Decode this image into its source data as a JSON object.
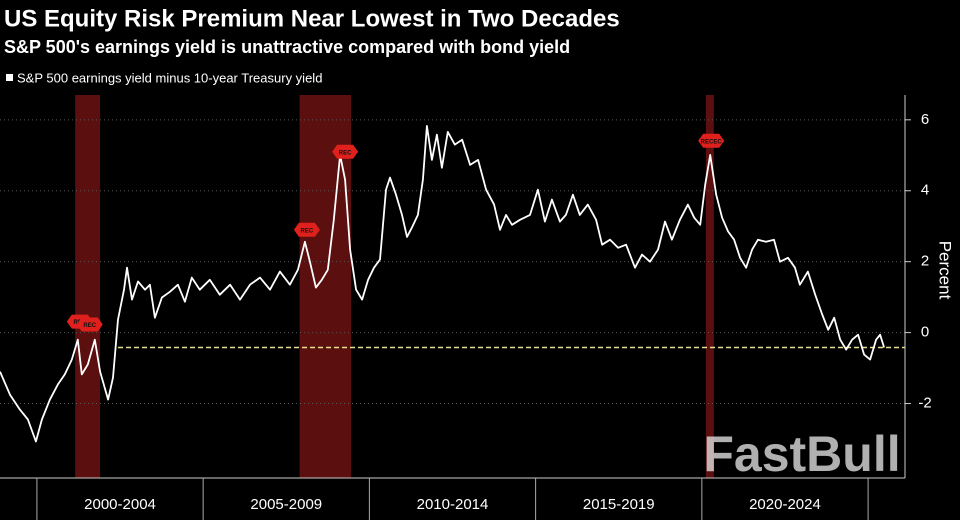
{
  "chart_data": {
    "type": "line",
    "title": "US Equity Risk Premium Near Lowest in Two Decades",
    "subtitle": "S&P 500's earnings yield is unattractive compared with bond yield",
    "y_label": "Percent",
    "watermark": "FastBull",
    "x": [
      1998.89,
      1999.19,
      1999.49,
      1999.73,
      1999.97,
      2000.15,
      2000.39,
      2000.63,
      2000.84,
      2001.05,
      2001.23,
      2001.35,
      2001.53,
      2001.74,
      2001.9,
      2002.14,
      2002.29,
      2002.44,
      2002.62,
      2002.71,
      2002.86,
      2003.04,
      2003.25,
      2003.4,
      2003.55,
      2003.76,
      2004.0,
      2004.24,
      2004.45,
      2004.66,
      2004.9,
      2005.2,
      2005.5,
      2005.81,
      2006.11,
      2006.41,
      2006.71,
      2007.01,
      2007.31,
      2007.61,
      2007.85,
      2008.06,
      2008.21,
      2008.39,
      2008.57,
      2008.75,
      2008.93,
      2009.12,
      2009.27,
      2009.42,
      2009.6,
      2009.78,
      2009.96,
      2010.14,
      2010.32,
      2010.5,
      2010.62,
      2010.8,
      2010.98,
      2011.13,
      2011.28,
      2011.46,
      2011.61,
      2011.73,
      2011.88,
      2012.03,
      2012.18,
      2012.36,
      2012.57,
      2012.79,
      2013.03,
      2013.27,
      2013.51,
      2013.75,
      2013.93,
      2014.11,
      2014.29,
      2014.53,
      2014.83,
      2015.07,
      2015.28,
      2015.49,
      2015.73,
      2015.91,
      2016.12,
      2016.33,
      2016.57,
      2016.82,
      2017.0,
      2017.24,
      2017.48,
      2017.72,
      2017.99,
      2018.2,
      2018.44,
      2018.68,
      2018.89,
      2019.1,
      2019.34,
      2019.58,
      2019.77,
      2019.95,
      2020.1,
      2020.25,
      2020.43,
      2020.61,
      2020.79,
      2020.97,
      2021.15,
      2021.33,
      2021.51,
      2021.69,
      2021.93,
      2022.17,
      2022.35,
      2022.59,
      2022.8,
      2022.95,
      2023.19,
      2023.41,
      2023.62,
      2023.8,
      2023.98,
      2024.16,
      2024.34,
      2024.52,
      2024.7,
      2024.88,
      2025.06,
      2025.24,
      2025.36,
      2025.48
    ],
    "series": [
      {
        "name": "S&P 500 earnings yield minus 10-year Treasury yield",
        "color": "#ffffff",
        "values": [
          -1.1,
          -1.75,
          -2.17,
          -2.45,
          -3.07,
          -2.45,
          -1.89,
          -1.46,
          -1.18,
          -0.76,
          -0.2,
          -1.18,
          -0.9,
          -0.2,
          -1.1,
          -1.89,
          -1.27,
          0.37,
          1.21,
          1.83,
          0.93,
          1.44,
          1.21,
          1.35,
          0.42,
          0.99,
          1.15,
          1.35,
          0.87,
          1.55,
          1.21,
          1.49,
          1.07,
          1.35,
          0.93,
          1.35,
          1.55,
          1.21,
          1.72,
          1.35,
          1.77,
          2.56,
          2.0,
          1.27,
          1.49,
          1.77,
          3.18,
          5.01,
          4.31,
          2.34,
          1.21,
          0.93,
          1.49,
          1.83,
          2.06,
          4.03,
          4.37,
          3.89,
          3.32,
          2.7,
          2.96,
          3.32,
          4.31,
          5.83,
          4.87,
          5.58,
          4.65,
          5.66,
          5.3,
          5.44,
          4.73,
          4.87,
          4.03,
          3.61,
          2.9,
          3.32,
          3.04,
          3.18,
          3.32,
          4.03,
          3.13,
          3.75,
          3.13,
          3.32,
          3.89,
          3.32,
          3.61,
          3.18,
          2.48,
          2.62,
          2.39,
          2.48,
          1.83,
          2.2,
          2.0,
          2.34,
          3.13,
          2.62,
          3.18,
          3.61,
          3.24,
          3.04,
          4.17,
          5.01,
          3.89,
          3.24,
          2.85,
          2.62,
          2.11,
          1.83,
          2.34,
          2.62,
          2.56,
          2.62,
          2.0,
          2.11,
          1.83,
          1.35,
          1.72,
          1.07,
          0.51,
          0.08,
          0.42,
          -0.2,
          -0.48,
          -0.2,
          -0.06,
          -0.62,
          -0.76,
          -0.2,
          -0.06,
          -0.42
        ]
      }
    ],
    "xlim": [
      1998.89,
      2026.11
    ],
    "ylim": [
      -4.1,
      6.7
    ],
    "yticks": [
      6,
      4,
      2,
      0,
      -2
    ],
    "x_separators": [
      2000,
      2005,
      2010,
      2015,
      2020,
      2025
    ],
    "xticks": [
      {
        "value": 2002.5,
        "label": "2000-2004"
      },
      {
        "value": 2007.5,
        "label": "2005-2009"
      },
      {
        "value": 2012.5,
        "label": "2010-2014"
      },
      {
        "value": 2017.5,
        "label": "2015-2019"
      },
      {
        "value": 2022.5,
        "label": "2020-2024"
      }
    ],
    "grid": true,
    "recessions": [
      {
        "start": 2001.15,
        "end": 2001.9
      },
      {
        "start": 2007.9,
        "end": 2009.45
      },
      {
        "start": 2020.12,
        "end": 2020.36
      }
    ],
    "recession_color": "#6b1212",
    "recession_markers": [
      {
        "x": 2001.29,
        "y": 0.31,
        "label": "REC"
      },
      {
        "x": 2001.59,
        "y": 0.23,
        "label": "REC"
      },
      {
        "x": 2008.12,
        "y": 2.9,
        "label": "REC"
      },
      {
        "x": 2009.27,
        "y": 5.1,
        "label": "REC"
      },
      {
        "x": 2020.28,
        "y": 5.41,
        "label": "RECEC"
      }
    ],
    "reference_line": {
      "value": -0.42,
      "from": 2002.44,
      "color": "#e8e08a"
    }
  }
}
